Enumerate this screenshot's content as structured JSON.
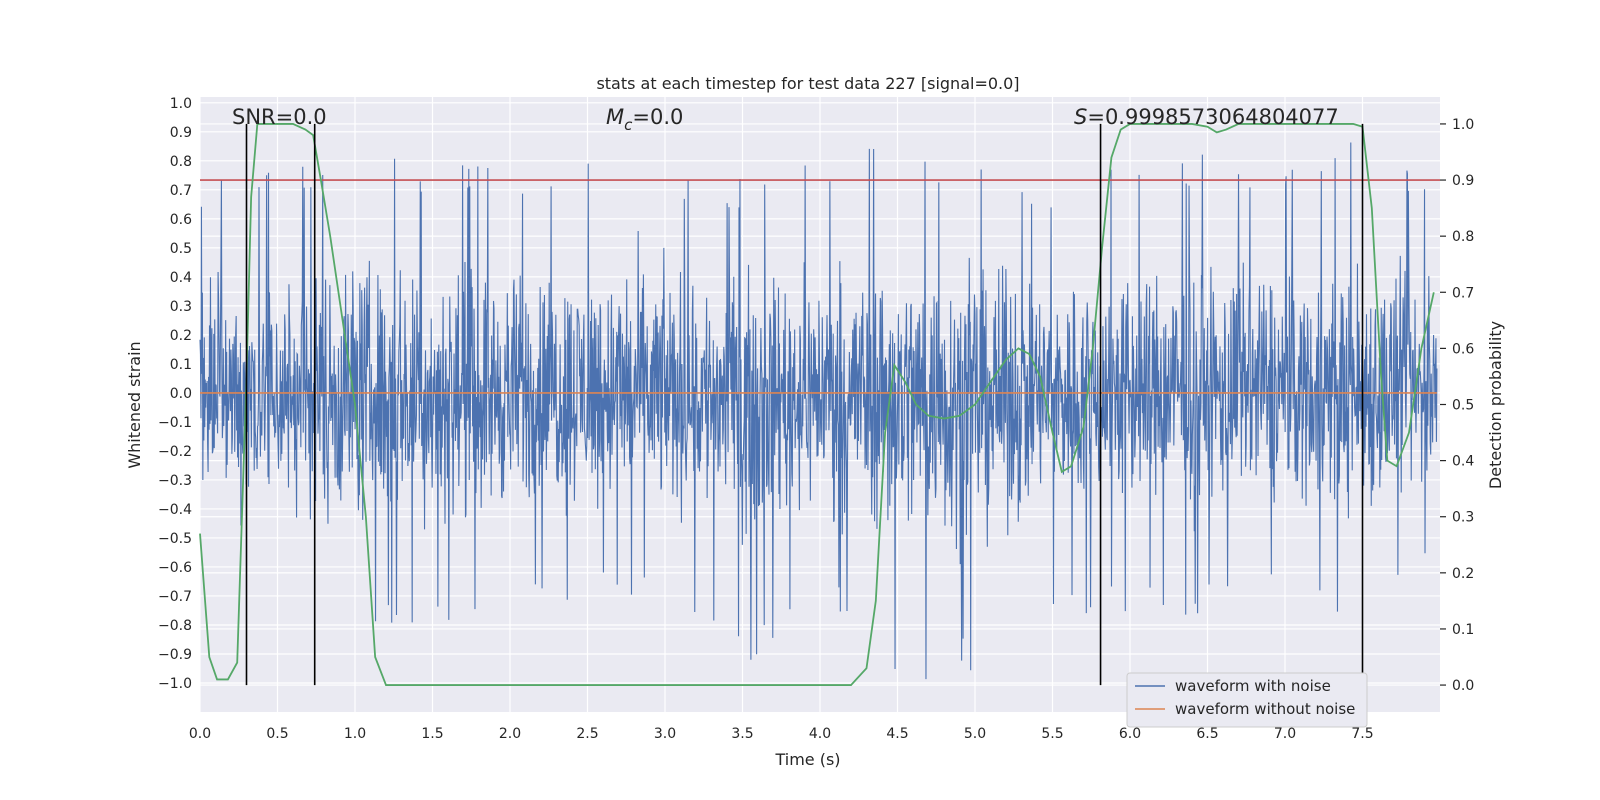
{
  "chart_data": {
    "type": "line",
    "title": "stats at each timestep for test data 227 [signal=0.0]",
    "xlabel": "Time (s)",
    "ylabel": "Whitened strain",
    "y2label": "Detection probability",
    "xlim": [
      0.0,
      8.0
    ],
    "ylim": [
      -1.1,
      1.02
    ],
    "y2lim": [
      -0.048,
      1.048
    ],
    "x_ticks": [
      0.0,
      0.5,
      1.0,
      1.5,
      2.0,
      2.5,
      3.0,
      3.5,
      4.0,
      4.5,
      5.0,
      5.5,
      6.0,
      6.5,
      7.0,
      7.5
    ],
    "x_tick_labels": [
      "0.0",
      "0.5",
      "1.0",
      "1.5",
      "2.0",
      "2.5",
      "3.0",
      "3.5",
      "4.0",
      "4.5",
      "5.0",
      "5.5",
      "6.0",
      "6.5",
      "7.0",
      "7.5"
    ],
    "y_ticks": [
      -1.0,
      -0.9,
      -0.8,
      -0.7,
      -0.6,
      -0.5,
      -0.4,
      -0.3,
      -0.2,
      -0.1,
      0.0,
      0.1,
      0.2,
      0.3,
      0.4,
      0.5,
      0.6,
      0.7,
      0.8,
      0.9,
      1.0
    ],
    "y_tick_labels": [
      "−1.0",
      "−0.9",
      "−0.8",
      "−0.7",
      "−0.6",
      "−0.5",
      "−0.4",
      "−0.3",
      "−0.2",
      "−0.1",
      "0.0",
      "0.1",
      "0.2",
      "0.3",
      "0.4",
      "0.5",
      "0.6",
      "0.7",
      "0.8",
      "0.9",
      "1.0"
    ],
    "y2_ticks": [
      0.0,
      0.1,
      0.2,
      0.3,
      0.4,
      0.5,
      0.6,
      0.7,
      0.8,
      0.9,
      1.0
    ],
    "y2_tick_labels": [
      "0.0",
      "0.1",
      "0.2",
      "0.3",
      "0.4",
      "0.5",
      "0.6",
      "0.7",
      "0.8",
      "0.9",
      "1.0"
    ],
    "series": [
      {
        "name": "waveform with noise",
        "color": "#4c72b0",
        "axis": "left",
        "envelope_note": "dense noise trace; envelope estimated per 0.5 s segment",
        "x": [
          0.0,
          0.5,
          1.0,
          1.5,
          2.0,
          2.5,
          3.0,
          3.5,
          4.0,
          4.5,
          5.0,
          5.5,
          6.0,
          6.5,
          7.0,
          7.5,
          7.98
        ],
        "upper": [
          0.72,
          0.78,
          0.9,
          0.8,
          0.78,
          0.86,
          0.8,
          0.74,
          0.82,
          0.87,
          0.8,
          0.7,
          0.86,
          0.82,
          0.84,
          0.9,
          0.74
        ],
        "lower": [
          -0.73,
          -0.8,
          -0.86,
          -0.83,
          -0.78,
          -0.72,
          -0.75,
          -0.95,
          -0.7,
          -1.0,
          -0.99,
          -0.76,
          -0.78,
          -0.76,
          -0.7,
          -0.78,
          -0.6
        ]
      },
      {
        "name": "waveform without noise",
        "color": "#dd8452",
        "axis": "left",
        "x": [
          0.0,
          7.98
        ],
        "y": [
          0.0,
          0.0
        ]
      },
      {
        "name": "detection probability",
        "color": "#55a868",
        "axis": "right",
        "x": [
          0.0,
          0.06,
          0.11,
          0.18,
          0.24,
          0.3,
          0.33,
          0.37,
          0.43,
          0.5,
          0.6,
          0.68,
          0.73,
          0.78,
          0.84,
          0.92,
          1.0,
          1.07,
          1.13,
          1.2,
          1.5,
          2.0,
          3.0,
          4.0,
          4.2,
          4.3,
          4.36,
          4.42,
          4.48,
          4.55,
          4.62,
          4.7,
          4.8,
          4.9,
          5.0,
          5.1,
          5.2,
          5.28,
          5.35,
          5.42,
          5.5,
          5.56,
          5.62,
          5.7,
          5.76,
          5.82,
          5.88,
          5.94,
          6.0,
          6.2,
          6.4,
          6.5,
          6.56,
          6.62,
          6.7,
          7.0,
          7.2,
          7.36,
          7.44,
          7.5,
          7.56,
          7.62,
          7.66,
          7.72,
          7.8,
          7.88,
          7.96
        ],
        "y": [
          0.27,
          0.05,
          0.01,
          0.01,
          0.04,
          0.55,
          0.87,
          1.0,
          1.0,
          1.0,
          1.0,
          0.99,
          0.98,
          0.9,
          0.8,
          0.65,
          0.5,
          0.3,
          0.05,
          0.0,
          0.0,
          0.0,
          0.0,
          0.0,
          0.0,
          0.03,
          0.15,
          0.45,
          0.57,
          0.54,
          0.5,
          0.48,
          0.475,
          0.48,
          0.5,
          0.54,
          0.58,
          0.6,
          0.59,
          0.55,
          0.45,
          0.38,
          0.39,
          0.46,
          0.6,
          0.78,
          0.94,
          0.99,
          1.0,
          1.0,
          1.0,
          0.995,
          0.985,
          0.99,
          1.0,
          1.0,
          1.0,
          1.0,
          1.0,
          0.995,
          0.85,
          0.55,
          0.4,
          0.39,
          0.45,
          0.6,
          0.7
        ]
      }
    ],
    "hlines": [
      {
        "axis": "right",
        "y": 0.9,
        "color": "#c44e52"
      }
    ],
    "vlines": [
      0.3,
      0.74,
      5.81,
      7.5
    ],
    "annotations": {
      "snr": "SNR=0.0",
      "mc_symbol": "M",
      "mc_sub": "c",
      "mc_value": "=0.0",
      "s_symbol": "S",
      "s_value": "=0.9998573064804077"
    },
    "legend": {
      "position": "lower-right",
      "entries": [
        "waveform with noise",
        "waveform without noise"
      ]
    },
    "grid": true,
    "style": {
      "axes_bg": "#eaeaf2",
      "grid_color": "#ffffff",
      "vline_color": "#000000"
    }
  }
}
